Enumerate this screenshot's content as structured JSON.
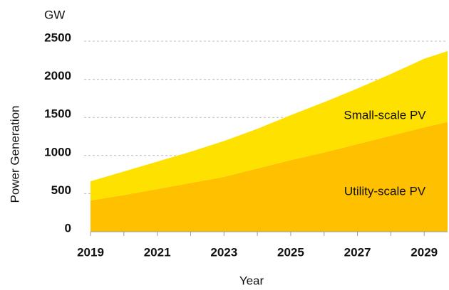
{
  "chart_data": {
    "type": "stacked_area",
    "unit": "GW",
    "y_label": "Power Generation",
    "x_label": "Year",
    "x": [
      2019,
      2020,
      2021,
      2022,
      2023,
      2024,
      2025,
      2026,
      2027,
      2028,
      2029,
      2029.7
    ],
    "series": [
      {
        "name": "Utility-scale PV",
        "color": "#ffc000",
        "values": [
          410,
          480,
          560,
          640,
          720,
          830,
          940,
          1040,
          1150,
          1260,
          1370,
          1440
        ]
      },
      {
        "name": "Small-scale PV",
        "color": "#ffe100",
        "values": [
          252,
          310,
          360,
          410,
          470,
          520,
          590,
          660,
          730,
          810,
          900,
          930
        ]
      }
    ],
    "xlim": [
      2019,
      2029.7
    ],
    "xticks": [
      2019,
      2021,
      2023,
      2025,
      2027,
      2029
    ],
    "xminorticks": [
      2020,
      2022,
      2024,
      2026,
      2028
    ],
    "ylim": [
      0,
      2500
    ],
    "yticks": [
      0,
      500,
      1000,
      1500,
      2000,
      2500
    ],
    "grid": true
  }
}
